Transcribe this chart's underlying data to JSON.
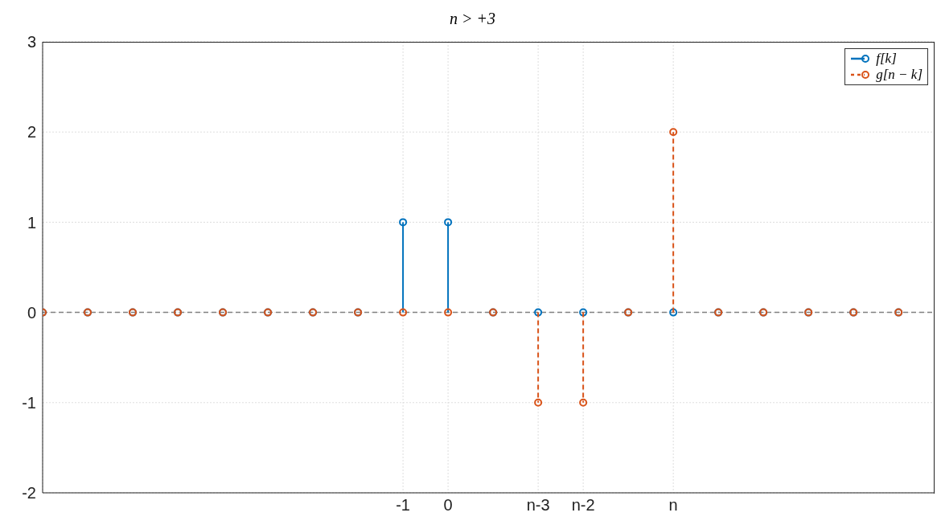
{
  "chart_data": {
    "type": "lollipop",
    "title": "n > +3",
    "x": [
      -9,
      -8,
      -7,
      -6,
      -5,
      -4,
      -3,
      -2,
      -1,
      0,
      1,
      2,
      3,
      4,
      5,
      6,
      7,
      8,
      9,
      10
    ],
    "xlim": [
      -9,
      10.8
    ],
    "xticks": [
      {
        "value": -1,
        "label": "-1"
      },
      {
        "value": 0,
        "label": "0"
      },
      {
        "value": 2,
        "label": "n-3"
      },
      {
        "value": 3,
        "label": "n-2"
      },
      {
        "value": 5,
        "label": "n"
      }
    ],
    "ylim": [
      -2,
      3
    ],
    "yticks": [
      -2,
      -1,
      0,
      1,
      2,
      3
    ],
    "grid": true,
    "legend": "top right",
    "marker": "circle",
    "ref_lines": [
      {
        "axis": "y",
        "value": 0,
        "color": "#808080",
        "line_style": "dashed"
      }
    ],
    "series": [
      {
        "name": "f[k]",
        "color": "#0072bd",
        "line_style": "solid",
        "values": [
          0,
          0,
          0,
          0,
          0,
          0,
          0,
          0,
          1,
          1,
          0,
          0,
          0,
          0,
          0,
          0,
          0,
          0,
          0,
          0
        ]
      },
      {
        "name": "g[n − k]",
        "color": "#d95319",
        "line_style": "dashed",
        "values": [
          0,
          0,
          0,
          0,
          0,
          0,
          0,
          0,
          0,
          0,
          0,
          -1,
          -1,
          0,
          2,
          0,
          0,
          0,
          0,
          0
        ]
      }
    ]
  }
}
